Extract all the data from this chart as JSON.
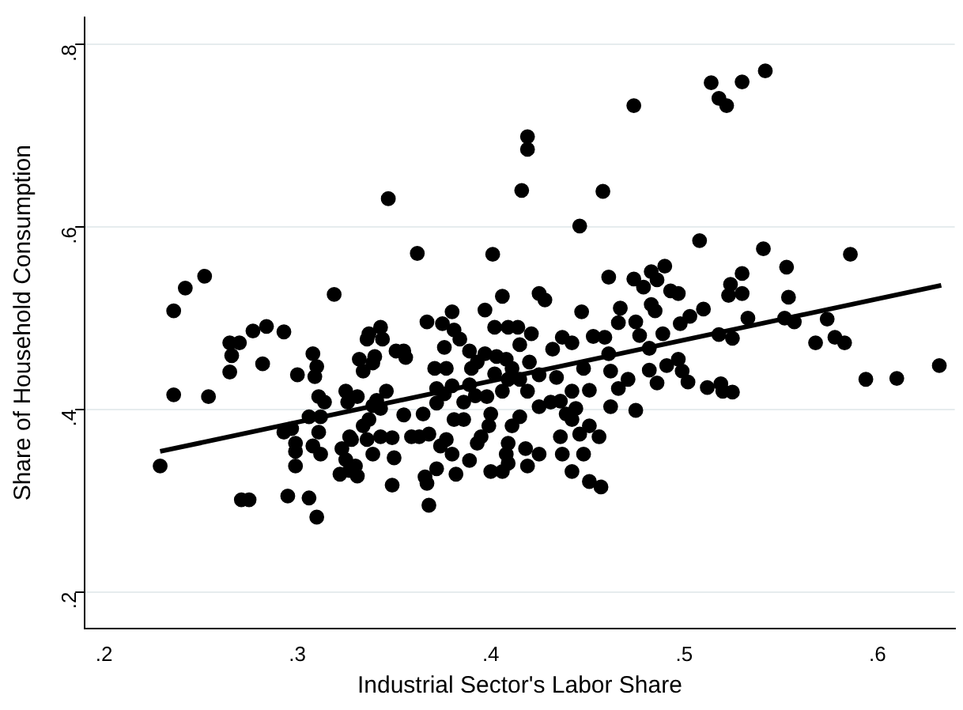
{
  "chart_data": {
    "type": "scatter",
    "xlabel": "Industrial Sector's Labor Share",
    "ylabel": "Share of Household Consumption",
    "xlim": [
      0.19,
      0.64
    ],
    "ylim": [
      0.16,
      0.83
    ],
    "xticks": [
      {
        "value": 0.2,
        "label": ".2"
      },
      {
        "value": 0.3,
        "label": ".3"
      },
      {
        "value": 0.4,
        "label": ".4"
      },
      {
        "value": 0.5,
        "label": ".5"
      },
      {
        "value": 0.6,
        "label": ".6"
      }
    ],
    "yticks": [
      {
        "value": 0.2,
        "label": ".2"
      },
      {
        "value": 0.4,
        "label": ".4"
      },
      {
        "value": 0.6,
        "label": ".6"
      },
      {
        "value": 0.8,
        "label": ".8"
      }
    ],
    "grid": "y",
    "legend": false,
    "marker": "circle",
    "series": [
      {
        "color": "#000000",
        "x": [
          0.542,
          0.514,
          0.53,
          0.518,
          0.522,
          0.474,
          0.419,
          0.419,
          0.416,
          0.458,
          0.347,
          0.446,
          0.508,
          0.541,
          0.586,
          0.362,
          0.401,
          0.553,
          0.252,
          0.242,
          0.236,
          0.319,
          0.236,
          0.254,
          0.229,
          0.271,
          0.275,
          0.295,
          0.306,
          0.31,
          0.368,
          0.349,
          0.367,
          0.457,
          0.451,
          0.632,
          0.594,
          0.61,
          0.568,
          0.578,
          0.583,
          0.574,
          0.552,
          0.557,
          0.554,
          0.533,
          0.518,
          0.525,
          0.512,
          0.519,
          0.52,
          0.525,
          0.524,
          0.53,
          0.523,
          0.53,
          0.51,
          0.503,
          0.498,
          0.493,
          0.497,
          0.49,
          0.486,
          0.483,
          0.479,
          0.474,
          0.461,
          0.467,
          0.466,
          0.475,
          0.477,
          0.485,
          0.489,
          0.482,
          0.483,
          0.497,
          0.491,
          0.499,
          0.502,
          0.482,
          0.486,
          0.471,
          0.466,
          0.462,
          0.475,
          0.459,
          0.453,
          0.461,
          0.462,
          0.447,
          0.437,
          0.442,
          0.432,
          0.434,
          0.425,
          0.428,
          0.448,
          0.451,
          0.442,
          0.436,
          0.444,
          0.431,
          0.425,
          0.451,
          0.456,
          0.446,
          0.436,
          0.437,
          0.442,
          0.448,
          0.442,
          0.439,
          0.421,
          0.415,
          0.42,
          0.419,
          0.425,
          0.415,
          0.406,
          0.402,
          0.409,
          0.414,
          0.403,
          0.408,
          0.411,
          0.409,
          0.402,
          0.406,
          0.398,
          0.4,
          0.399,
          0.395,
          0.411,
          0.415,
          0.409,
          0.418,
          0.425,
          0.419,
          0.409,
          0.406,
          0.4,
          0.408,
          0.397,
          0.397,
          0.39,
          0.393,
          0.389,
          0.392,
          0.386,
          0.386,
          0.393,
          0.389,
          0.38,
          0.375,
          0.381,
          0.384,
          0.376,
          0.389,
          0.371,
          0.377,
          0.372,
          0.38,
          0.367,
          0.376,
          0.372,
          0.381,
          0.377,
          0.374,
          0.38,
          0.382,
          0.372,
          0.366,
          0.355,
          0.351,
          0.356,
          0.355,
          0.359,
          0.363,
          0.368,
          0.365,
          0.343,
          0.344,
          0.34,
          0.339,
          0.334,
          0.346,
          0.341,
          0.339,
          0.343,
          0.337,
          0.343,
          0.349,
          0.35,
          0.339,
          0.331,
          0.327,
          0.327,
          0.336,
          0.337,
          0.336,
          0.332,
          0.331,
          0.325,
          0.326,
          0.334,
          0.328,
          0.323,
          0.325,
          0.322,
          0.33,
          0.308,
          0.31,
          0.309,
          0.3,
          0.311,
          0.314,
          0.306,
          0.312,
          0.311,
          0.299,
          0.299,
          0.299,
          0.308,
          0.312,
          0.293,
          0.284,
          0.277,
          0.282,
          0.27,
          0.265,
          0.266,
          0.265,
          0.293,
          0.297
        ],
        "values": [
          0.771,
          0.758,
          0.759,
          0.741,
          0.733,
          0.733,
          0.699,
          0.685,
          0.64,
          0.639,
          0.631,
          0.601,
          0.585,
          0.576,
          0.57,
          0.571,
          0.57,
          0.556,
          0.546,
          0.533,
          0.508,
          0.526,
          0.416,
          0.414,
          0.338,
          0.301,
          0.301,
          0.305,
          0.303,
          0.282,
          0.295,
          0.317,
          0.319,
          0.315,
          0.321,
          0.448,
          0.433,
          0.434,
          0.473,
          0.479,
          0.473,
          0.499,
          0.5,
          0.496,
          0.523,
          0.5,
          0.482,
          0.478,
          0.424,
          0.428,
          0.42,
          0.419,
          0.537,
          0.527,
          0.525,
          0.549,
          0.51,
          0.502,
          0.494,
          0.53,
          0.527,
          0.557,
          0.542,
          0.551,
          0.534,
          0.543,
          0.545,
          0.511,
          0.495,
          0.496,
          0.481,
          0.508,
          0.483,
          0.467,
          0.515,
          0.455,
          0.448,
          0.442,
          0.43,
          0.443,
          0.429,
          0.433,
          0.423,
          0.403,
          0.399,
          0.479,
          0.48,
          0.461,
          0.442,
          0.507,
          0.479,
          0.473,
          0.466,
          0.435,
          0.527,
          0.52,
          0.445,
          0.421,
          0.42,
          0.409,
          0.401,
          0.408,
          0.403,
          0.382,
          0.37,
          0.373,
          0.37,
          0.351,
          0.332,
          0.351,
          0.389,
          0.395,
          0.483,
          0.471,
          0.452,
          0.42,
          0.438,
          0.433,
          0.524,
          0.49,
          0.49,
          0.49,
          0.458,
          0.455,
          0.445,
          0.433,
          0.439,
          0.42,
          0.414,
          0.395,
          0.382,
          0.37,
          0.382,
          0.392,
          0.363,
          0.357,
          0.351,
          0.338,
          0.341,
          0.332,
          0.332,
          0.351,
          0.509,
          0.461,
          0.445,
          0.452,
          0.427,
          0.415,
          0.408,
          0.389,
          0.363,
          0.344,
          0.507,
          0.494,
          0.487,
          0.477,
          0.468,
          0.464,
          0.445,
          0.445,
          0.423,
          0.426,
          0.496,
          0.417,
          0.407,
          0.389,
          0.367,
          0.36,
          0.351,
          0.329,
          0.335,
          0.326,
          0.464,
          0.464,
          0.457,
          0.394,
          0.37,
          0.37,
          0.373,
          0.395,
          0.49,
          0.477,
          0.458,
          0.451,
          0.442,
          0.42,
          0.41,
          0.404,
          0.401,
          0.389,
          0.37,
          0.369,
          0.347,
          0.351,
          0.327,
          0.333,
          0.37,
          0.367,
          0.483,
          0.477,
          0.455,
          0.414,
          0.42,
          0.408,
          0.382,
          0.367,
          0.357,
          0.345,
          0.329,
          0.338,
          0.461,
          0.447,
          0.436,
          0.438,
          0.414,
          0.408,
          0.392,
          0.392,
          0.375,
          0.363,
          0.354,
          0.338,
          0.36,
          0.351,
          0.485,
          0.491,
          0.486,
          0.45,
          0.473,
          0.473,
          0.459,
          0.441,
          0.375,
          0.379
        ]
      },
      {
        "type": "line",
        "color": "#000000",
        "marker": "none",
        "x": [
          0.229,
          0.633
        ],
        "values": [
          0.354,
          0.536
        ]
      }
    ]
  }
}
